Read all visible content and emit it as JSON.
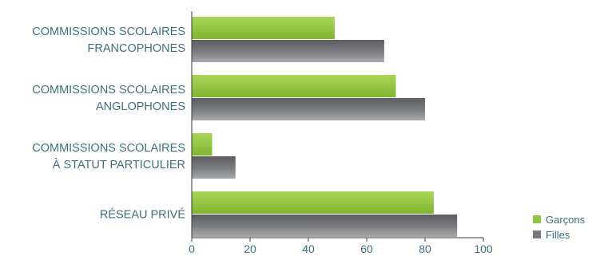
{
  "chart_data": {
    "type": "bar",
    "orientation": "horizontal",
    "categories": [
      [
        "COMMISSIONS SCOLAIRES",
        "FRANCOPHONES"
      ],
      [
        "COMMISSIONS SCOLAIRES",
        "ANGLOPHONES"
      ],
      [
        "COMMISSIONS SCOLAIRES",
        "À STATUT PARTICULIER"
      ],
      [
        "RÉSEAU PRIVÉ"
      ]
    ],
    "series": [
      {
        "name": "Garçons",
        "values": [
          49,
          70,
          7,
          83
        ],
        "color": "#8dc63f"
      },
      {
        "name": "Filles",
        "values": [
          66,
          80,
          15,
          91
        ],
        "color": "#77787b"
      }
    ],
    "xlim": [
      0,
      100
    ],
    "xticks": [
      0,
      20,
      40,
      60,
      80,
      100
    ],
    "title": "",
    "xlabel": "",
    "ylabel": "",
    "grid": false,
    "legend_position": "bottom-right"
  }
}
